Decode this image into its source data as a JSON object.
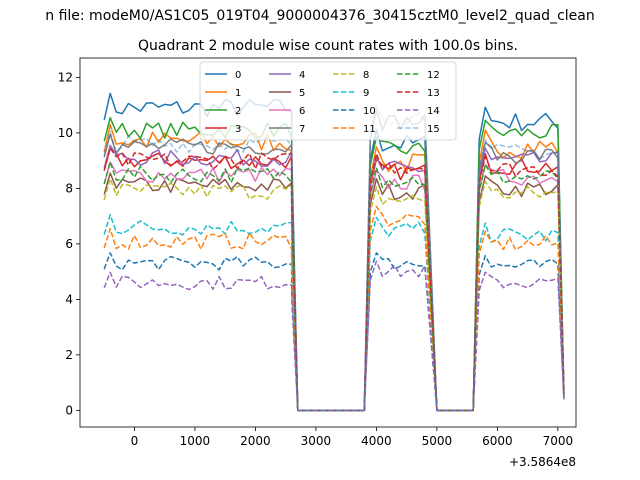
{
  "figure": {
    "suptitle": "n file: modeM0/AS1C05_019T04_9000004376_30415cztM0_level2_quad_clean"
  },
  "chart_data": {
    "type": "line",
    "title": "Quadrant 2 module wise count rates with 100.0s bins.",
    "xlabel": "",
    "ylabel": "",
    "offset_label": "+3.5864e8",
    "xlim": [
      -900,
      7300
    ],
    "ylim": [
      -0.6,
      12.7
    ],
    "xticks": [
      0,
      1000,
      2000,
      3000,
      4000,
      5000,
      6000,
      7000
    ],
    "yticks": [
      0,
      2,
      4,
      6,
      8,
      10,
      12
    ],
    "legend": {
      "placement": "top-center",
      "columns": 4
    },
    "segments": [
      {
        "start": -500,
        "end": 2600
      },
      {
        "start": 3900,
        "end": 4800
      },
      {
        "start": 5700,
        "end": 7000
      }
    ],
    "gap_end_points": [
      2700,
      3800,
      5000,
      5600,
      7100
    ],
    "series": [
      {
        "name": "0",
        "color": "#1f77b4",
        "dash": "solid",
        "base": 10.9,
        "segment_levels": [
          10.9,
          9.6,
          10.4
        ],
        "noise": 0.35,
        "end_value": 0.4
      },
      {
        "name": "1",
        "color": "#ff7f0e",
        "dash": "solid",
        "base": 9.9,
        "segment_levels": [
          9.7,
          8.9,
          9.5
        ],
        "noise": 0.4,
        "end_value": 0.8
      },
      {
        "name": "2",
        "color": "#2ca02c",
        "dash": "solid",
        "base": 10.2,
        "segment_levels": [
          10.1,
          9.4,
          10.0
        ],
        "noise": 0.3,
        "end_value": 0.6
      },
      {
        "name": "3",
        "color": "#d62728",
        "dash": "solid",
        "base": 9.2,
        "segment_levels": [
          9.0,
          8.6,
          8.8
        ],
        "noise": 0.3,
        "end_value": 0.7
      },
      {
        "name": "4",
        "color": "#9467bd",
        "dash": "solid",
        "base": 9.3,
        "segment_levels": [
          9.1,
          8.7,
          9.0
        ],
        "noise": 0.3,
        "end_value": 0.6
      },
      {
        "name": "5",
        "color": "#8c564b",
        "dash": "solid",
        "base": 8.3,
        "segment_levels": [
          8.1,
          7.9,
          8.0
        ],
        "noise": 0.3,
        "end_value": 0.6
      },
      {
        "name": "6",
        "color": "#e377c2",
        "dash": "solid",
        "base": 8.7,
        "segment_levels": [
          8.5,
          8.2,
          8.4
        ],
        "noise": 0.3,
        "end_value": 0.6
      },
      {
        "name": "7",
        "color": "#7f7f7f",
        "dash": "solid",
        "base": 9.7,
        "segment_levels": [
          9.5,
          10.4,
          9.2
        ],
        "noise": 0.3,
        "end_value": 0.5
      },
      {
        "name": "8",
        "color": "#bcbd22",
        "dash": "dashed",
        "base": 8.0,
        "segment_levels": [
          7.9,
          7.6,
          7.8
        ],
        "noise": 0.3,
        "end_value": 0.6
      },
      {
        "name": "9",
        "color": "#17becf",
        "dash": "dashed",
        "base": 6.8,
        "segment_levels": [
          6.6,
          6.5,
          6.3
        ],
        "noise": 0.3,
        "end_value": 0.5
      },
      {
        "name": "10",
        "color": "#1f77b4",
        "dash": "dashed",
        "base": 5.5,
        "segment_levels": [
          5.3,
          5.3,
          5.2
        ],
        "noise": 0.25,
        "end_value": 0.4
      },
      {
        "name": "11",
        "color": "#ff7f0e",
        "dash": "dashed",
        "base": 6.4,
        "segment_levels": [
          6.1,
          6.9,
          6.0
        ],
        "noise": 0.3,
        "end_value": 0.5
      },
      {
        "name": "12",
        "color": "#2ca02c",
        "dash": "dashed",
        "base": 8.6,
        "segment_levels": [
          8.5,
          8.3,
          8.4
        ],
        "noise": 0.3,
        "end_value": 0.6
      },
      {
        "name": "13",
        "color": "#d62728",
        "dash": "dashed",
        "base": 9.3,
        "segment_levels": [
          9.0,
          8.8,
          8.7
        ],
        "noise": 0.3,
        "end_value": 0.6
      },
      {
        "name": "14",
        "color": "#9467bd",
        "dash": "dashed",
        "base": 4.8,
        "segment_levels": [
          4.6,
          5.0,
          4.6
        ],
        "noise": 0.25,
        "end_value": 0.4
      },
      {
        "name": "15",
        "color": "#1f77b4",
        "dash": "dashed",
        "base": 10.2,
        "segment_levels": [
          9.6,
          10.6,
          9.3
        ],
        "noise": 0.3,
        "end_value": 0.5
      }
    ]
  }
}
